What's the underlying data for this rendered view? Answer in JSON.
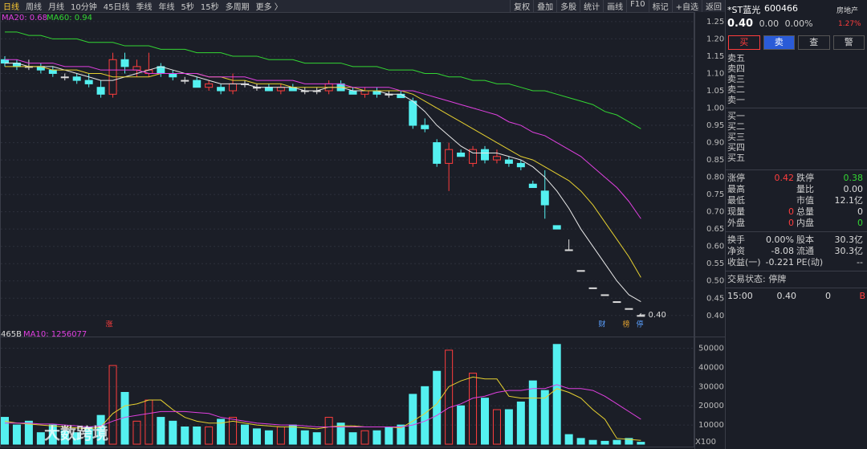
{
  "toolbar": {
    "periods": [
      "日线",
      "周线",
      "月线",
      "10分钟",
      "45日线",
      "季线",
      "年线",
      "5秒",
      "15秒",
      "多周期",
      "更多 〉"
    ],
    "tools": [
      "复权",
      "叠加",
      "多股",
      "统计",
      "画线",
      "F10",
      "标记",
      "+自选",
      "返回"
    ]
  },
  "price_chart": {
    "type": "candlestick",
    "legend": [
      {
        "text": "MA20: 0.68",
        "color": "#e040e0"
      },
      {
        "text": "MA60: 0.94",
        "color": "#33d633"
      }
    ],
    "up_color": "#ff3d3d",
    "down_color": "#54f0f0",
    "flat_color": "#dddddd",
    "open": [
      1.14,
      1.13,
      1.12,
      1.12,
      1.11,
      1.09,
      1.09,
      1.08,
      1.06,
      1.04,
      1.14,
      1.11,
      1.1,
      1.12,
      1.1,
      1.08,
      1.08,
      1.06,
      1.06,
      1.05,
      1.07,
      1.06,
      1.06,
      1.05,
      1.06,
      1.05,
      1.05,
      1.05,
      1.07,
      1.05,
      1.04,
      1.05,
      1.04,
      1.04,
      1.02,
      0.95,
      0.9,
      0.84,
      0.87,
      0.84,
      0.88,
      0.85,
      0.85,
      0.84,
      0.78,
      0.76,
      0.66,
      0.59,
      0.53,
      0.48,
      0.46,
      0.44,
      0.42,
      0.4
    ],
    "high": [
      1.15,
      1.14,
      1.14,
      1.13,
      1.12,
      1.1,
      1.1,
      1.1,
      1.08,
      1.16,
      1.16,
      1.14,
      1.16,
      1.13,
      1.11,
      1.09,
      1.09,
      1.08,
      1.07,
      1.1,
      1.08,
      1.07,
      1.07,
      1.07,
      1.07,
      1.06,
      1.06,
      1.08,
      1.08,
      1.06,
      1.06,
      1.06,
      1.05,
      1.05,
      1.03,
      0.97,
      0.91,
      0.9,
      0.88,
      0.89,
      0.89,
      0.88,
      0.86,
      0.85,
      0.79,
      0.82,
      0.66,
      0.62,
      0.53,
      0.48,
      0.46,
      0.44,
      0.42,
      0.4
    ],
    "low": [
      1.12,
      1.11,
      1.11,
      1.1,
      1.09,
      1.08,
      1.07,
      1.06,
      1.03,
      1.03,
      1.1,
      1.09,
      1.09,
      1.09,
      1.08,
      1.07,
      1.06,
      1.05,
      1.04,
      1.04,
      1.06,
      1.05,
      1.05,
      1.04,
      1.05,
      1.04,
      1.04,
      1.04,
      1.05,
      1.04,
      1.03,
      1.03,
      1.03,
      1.03,
      0.94,
      0.93,
      0.83,
      0.76,
      0.86,
      0.83,
      0.84,
      0.84,
      0.83,
      0.82,
      0.77,
      0.68,
      0.65,
      0.59,
      0.53,
      0.48,
      0.46,
      0.44,
      0.42,
      0.4
    ],
    "close": [
      1.13,
      1.12,
      1.12,
      1.11,
      1.1,
      1.09,
      1.08,
      1.07,
      1.04,
      1.14,
      1.12,
      1.12,
      1.11,
      1.1,
      1.09,
      1.08,
      1.06,
      1.07,
      1.05,
      1.07,
      1.07,
      1.06,
      1.05,
      1.06,
      1.05,
      1.05,
      1.05,
      1.07,
      1.05,
      1.04,
      1.05,
      1.04,
      1.04,
      1.03,
      0.95,
      0.94,
      0.84,
      0.88,
      0.86,
      0.88,
      0.85,
      0.86,
      0.84,
      0.83,
      0.77,
      0.72,
      0.65,
      0.59,
      0.53,
      0.48,
      0.46,
      0.44,
      0.42,
      0.4
    ],
    "ma_lines": [
      {
        "color": "#e8e8e8",
        "values": [
          1.13,
          1.13,
          1.12,
          1.12,
          1.12,
          1.11,
          1.1,
          1.09,
          1.08,
          1.08,
          1.09,
          1.1,
          1.11,
          1.12,
          1.11,
          1.1,
          1.09,
          1.08,
          1.07,
          1.07,
          1.07,
          1.06,
          1.06,
          1.06,
          1.06,
          1.05,
          1.05,
          1.06,
          1.06,
          1.05,
          1.05,
          1.05,
          1.04,
          1.04,
          1.02,
          0.99,
          0.95,
          0.92,
          0.89,
          0.87,
          0.87,
          0.87,
          0.86,
          0.85,
          0.83,
          0.8,
          0.76,
          0.71,
          0.65,
          0.6,
          0.55,
          0.5,
          0.46,
          0.44
        ]
      },
      {
        "color": "#e6d030",
        "values": [
          1.12,
          1.12,
          1.12,
          1.12,
          1.11,
          1.11,
          1.11,
          1.1,
          1.1,
          1.09,
          1.09,
          1.09,
          1.09,
          1.1,
          1.1,
          1.1,
          1.1,
          1.09,
          1.09,
          1.08,
          1.08,
          1.07,
          1.07,
          1.07,
          1.06,
          1.06,
          1.06,
          1.06,
          1.06,
          1.06,
          1.05,
          1.05,
          1.05,
          1.05,
          1.04,
          1.02,
          1.0,
          0.98,
          0.96,
          0.94,
          0.92,
          0.9,
          0.88,
          0.86,
          0.85,
          0.83,
          0.81,
          0.79,
          0.76,
          0.72,
          0.67,
          0.62,
          0.57,
          0.51
        ]
      },
      {
        "color": "#e040e0",
        "values": [
          1.14,
          1.14,
          1.13,
          1.13,
          1.13,
          1.12,
          1.12,
          1.12,
          1.11,
          1.11,
          1.11,
          1.11,
          1.1,
          1.1,
          1.1,
          1.1,
          1.1,
          1.09,
          1.09,
          1.09,
          1.09,
          1.08,
          1.08,
          1.08,
          1.08,
          1.07,
          1.07,
          1.07,
          1.07,
          1.06,
          1.06,
          1.06,
          1.06,
          1.05,
          1.05,
          1.04,
          1.03,
          1.02,
          1.01,
          1.0,
          0.99,
          0.98,
          0.96,
          0.95,
          0.93,
          0.92,
          0.9,
          0.88,
          0.86,
          0.83,
          0.8,
          0.77,
          0.73,
          0.68
        ]
      },
      {
        "color": "#33d633",
        "values": [
          1.22,
          1.22,
          1.21,
          1.21,
          1.2,
          1.2,
          1.2,
          1.19,
          1.19,
          1.19,
          1.18,
          1.18,
          1.18,
          1.17,
          1.17,
          1.17,
          1.16,
          1.16,
          1.16,
          1.15,
          1.15,
          1.15,
          1.14,
          1.14,
          1.14,
          1.13,
          1.13,
          1.13,
          1.13,
          1.12,
          1.12,
          1.12,
          1.11,
          1.11,
          1.11,
          1.1,
          1.1,
          1.09,
          1.09,
          1.08,
          1.08,
          1.07,
          1.07,
          1.06,
          1.05,
          1.05,
          1.04,
          1.03,
          1.02,
          1.01,
          0.99,
          0.98,
          0.96,
          0.94
        ]
      }
    ],
    "ylim": [
      0.36,
      1.28
    ],
    "yticks": [
      1.25,
      {
        "value": 1.2,
        "label": "1.20"
      },
      1.15,
      {
        "value": 1.1,
        "label": "1.10"
      },
      1.05,
      {
        "value": 1.0,
        "label": "1.00"
      },
      0.95,
      {
        "value": 0.9,
        "label": "0.90"
      },
      0.85,
      {
        "value": 0.8,
        "label": "0.80"
      },
      0.75,
      {
        "value": 0.7,
        "label": "0.70"
      },
      0.65,
      {
        "value": 0.6,
        "label": "0.60"
      },
      0.55,
      {
        "value": 0.5,
        "label": "0.50"
      },
      0.45,
      {
        "value": 0.4,
        "label": "0.40"
      }
    ],
    "markers": [
      {
        "text": "涨",
        "color": "#ff3d3d"
      },
      {
        "text": "财",
        "color": "#5aa0ff"
      },
      {
        "text": "榜",
        "color": "#e0a030"
      },
      {
        "text": "停",
        "color": "#5aa0ff"
      }
    ],
    "last_price_label": "← 0.40"
  },
  "volume_chart": {
    "type": "bar",
    "legend": [
      {
        "text": "465B",
        "color": "#dddddd"
      },
      {
        "text": "MA10: 1256077",
        "color": "#e040e0"
      }
    ],
    "values": [
      14000,
      10000,
      12000,
      6000,
      10000,
      7000,
      6000,
      9000,
      15000,
      41000,
      27000,
      12000,
      23000,
      14000,
      12000,
      9000,
      9000,
      9000,
      13000,
      14000,
      10000,
      8000,
      7000,
      9000,
      10000,
      7000,
      6000,
      14000,
      11000,
      6000,
      7000,
      7000,
      9000,
      10000,
      26000,
      30000,
      38000,
      49000,
      20000,
      37000,
      24000,
      18000,
      18000,
      22000,
      33000,
      28000,
      52000,
      5000,
      3000,
      2000,
      1500,
      2000,
      3000,
      1000
    ],
    "ma_lines": [
      {
        "color": "#e6d030",
        "values": [
          12000,
          11000,
          10500,
          10000,
          9500,
          9000,
          8500,
          8000,
          9000,
          16000,
          20000,
          21000,
          23000,
          23000,
          18000,
          14000,
          12000,
          11000,
          11000,
          12000,
          11000,
          10000,
          9500,
          9000,
          9000,
          8500,
          8000,
          9000,
          9500,
          9500,
          9000,
          9000,
          9000,
          8500,
          12000,
          16000,
          21000,
          30000,
          33000,
          35000,
          34000,
          34000,
          25000,
          24000,
          24000,
          24000,
          29000,
          27000,
          24000,
          18000,
          13000,
          3000,
          2500,
          2000
        ]
      },
      {
        "color": "#e040e0",
        "values": [
          11000,
          11000,
          11000,
          10500,
          10500,
          10000,
          9500,
          9000,
          9500,
          12000,
          14000,
          15000,
          16000,
          17000,
          17000,
          17000,
          16500,
          16000,
          14000,
          13000,
          12000,
          11000,
          10500,
          10000,
          10000,
          9500,
          9000,
          9000,
          9000,
          9000,
          9000,
          9000,
          9000,
          9000,
          10000,
          12000,
          15000,
          19000,
          21000,
          24000,
          25000,
          27000,
          28000,
          28000,
          29000,
          29000,
          31000,
          29000,
          29000,
          28000,
          25000,
          21000,
          17000,
          13000
        ]
      }
    ],
    "ylim": [
      0,
      54000
    ],
    "yticks": [
      50000,
      40000,
      30000,
      20000,
      10000
    ],
    "unit_label": "X100"
  },
  "quote": {
    "name": "*ST蓝光",
    "code": "600466",
    "sector": "房地产",
    "sector_change": "1.27%",
    "price": "0.40",
    "change": "0.00",
    "change_pct": "0.00%",
    "buttons": [
      "买",
      "卖",
      "查",
      "警"
    ],
    "asks": [
      "卖五",
      "卖四",
      "卖三",
      "卖二",
      "卖一"
    ],
    "bids": [
      "买一",
      "买二",
      "买三",
      "买四",
      "买五"
    ],
    "stats": [
      [
        {
          "label": "涨停",
          "value": "0.42",
          "color": "#ff3d3d"
        },
        {
          "label": "跌停",
          "value": "0.38",
          "color": "#33d633"
        }
      ],
      [
        {
          "label": "最高"
        },
        {
          "label": "量比",
          "value": "0.00"
        }
      ],
      [
        {
          "label": "最低"
        },
        {
          "label": "市值",
          "value": "12.1亿"
        }
      ],
      [
        {
          "label": "现量",
          "value": "0",
          "color": "#ff3d3d"
        },
        {
          "label": "总量",
          "value": "0"
        }
      ],
      [
        {
          "label": "外盘",
          "value": "0",
          "color": "#ff3d3d"
        },
        {
          "label": "内盘",
          "value": "0",
          "color": "#33d633"
        }
      ]
    ],
    "finance": [
      [
        {
          "label": "换手",
          "value": "0.00%"
        },
        {
          "label": "股本",
          "value": "30.3亿"
        }
      ],
      [
        {
          "label": "净资",
          "value": "-8.08"
        },
        {
          "label": "流通",
          "value": "30.3亿"
        }
      ],
      [
        {
          "label": "收益(一)",
          "value": "-0.221"
        },
        {
          "label": "PE(动)",
          "value": "--"
        }
      ]
    ],
    "status": "交易状态: 停牌",
    "tick": [
      "15:00",
      "0.40",
      "0",
      "B"
    ]
  },
  "watermark": "大数跨境"
}
